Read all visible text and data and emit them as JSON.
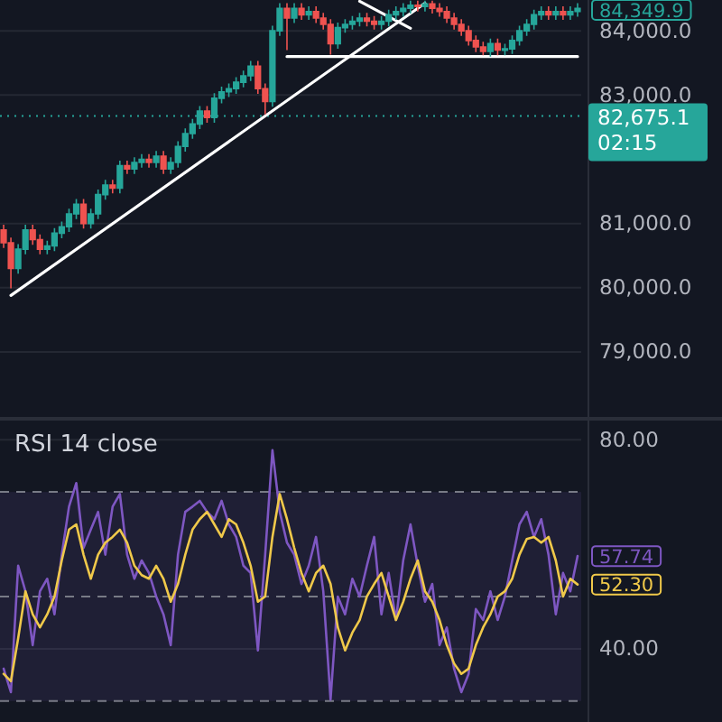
{
  "chart_data": [
    {
      "type": "candlestick",
      "categories": [
        null,
        null,
        null,
        null,
        null,
        null,
        null,
        null,
        null,
        null,
        null,
        null,
        null,
        null,
        null,
        null,
        null,
        null,
        null,
        null,
        null,
        null,
        null,
        null,
        null,
        null,
        null,
        null,
        null,
        null,
        null,
        null,
        null,
        null,
        null,
        null,
        null,
        null,
        null,
        null,
        null,
        null,
        null,
        null,
        null,
        null,
        null,
        null,
        null,
        null,
        null,
        null,
        null,
        null,
        null,
        null,
        null,
        null,
        null,
        null,
        null,
        null,
        null,
        null,
        null,
        null,
        null,
        null,
        null,
        null,
        null,
        null,
        null,
        null,
        null,
        null,
        null,
        null,
        null,
        null
      ],
      "ohlc": [
        [
          80900,
          80980,
          80620,
          80700
        ],
        [
          80700,
          80780,
          79990,
          80300
        ],
        [
          80300,
          80680,
          80220,
          80600
        ],
        [
          80600,
          80980,
          80520,
          80900
        ],
        [
          80900,
          80980,
          80670,
          80750
        ],
        [
          80750,
          80830,
          80520,
          80600
        ],
        [
          80600,
          80730,
          80520,
          80650
        ],
        [
          80650,
          80930,
          80570,
          80850
        ],
        [
          80850,
          81030,
          80770,
          80950
        ],
        [
          80950,
          81230,
          80870,
          81150
        ],
        [
          81150,
          81380,
          81070,
          81300
        ],
        [
          81300,
          81380,
          80920,
          81000
        ],
        [
          81000,
          81230,
          80920,
          81150
        ],
        [
          81150,
          81530,
          81070,
          81450
        ],
        [
          81450,
          81680,
          81370,
          81600
        ],
        [
          81600,
          81680,
          81470,
          81550
        ],
        [
          81550,
          81980,
          81470,
          81900
        ],
        [
          81900,
          81980,
          81770,
          81850
        ],
        [
          81850,
          82030,
          81770,
          81950
        ],
        [
          81950,
          82080,
          81870,
          82000
        ],
        [
          82000,
          82080,
          81870,
          81950
        ],
        [
          81950,
          82130,
          81870,
          82050
        ],
        [
          82050,
          82130,
          81770,
          81850
        ],
        [
          81850,
          82030,
          81770,
          81950
        ],
        [
          81950,
          82280,
          81870,
          82200
        ],
        [
          82200,
          82480,
          82120,
          82400
        ],
        [
          82400,
          82630,
          82320,
          82550
        ],
        [
          82550,
          82830,
          82470,
          82750
        ],
        [
          82750,
          82830,
          82570,
          82650
        ],
        [
          82650,
          83030,
          82570,
          82950
        ],
        [
          82950,
          83130,
          82870,
          83050
        ],
        [
          83050,
          83180,
          82970,
          83100
        ],
        [
          83100,
          83280,
          83020,
          83200
        ],
        [
          83200,
          83380,
          83120,
          83300
        ],
        [
          83300,
          83530,
          83220,
          83450
        ],
        [
          83450,
          83530,
          83020,
          83100
        ],
        [
          83100,
          83180,
          82700,
          82900
        ],
        [
          82900,
          84080,
          82820,
          84000
        ],
        [
          84000,
          84430,
          83920,
          84350
        ],
        [
          84350,
          84430,
          83700,
          84200
        ],
        [
          84200,
          84430,
          84120,
          84350
        ],
        [
          84350,
          84430,
          84170,
          84250
        ],
        [
          84250,
          84380,
          84170,
          84300
        ],
        [
          84300,
          84380,
          84120,
          84200
        ],
        [
          84200,
          84280,
          84020,
          84100
        ],
        [
          84100,
          84180,
          83630,
          83800
        ],
        [
          83800,
          84130,
          83720,
          84050
        ],
        [
          84050,
          84180,
          83970,
          84100
        ],
        [
          84100,
          84230,
          84020,
          84150
        ],
        [
          84150,
          84280,
          84070,
          84200
        ],
        [
          84200,
          84280,
          84070,
          84150
        ],
        [
          84150,
          84230,
          84020,
          84100
        ],
        [
          84100,
          84230,
          84020,
          84150
        ],
        [
          84150,
          84330,
          84070,
          84250
        ],
        [
          84250,
          84380,
          84170,
          84300
        ],
        [
          84300,
          84430,
          84220,
          84350
        ],
        [
          84350,
          84470,
          84270,
          84400
        ],
        [
          84400,
          84470,
          84300,
          84380
        ],
        [
          84380,
          84470,
          84300,
          84420
        ],
        [
          84420,
          84470,
          84270,
          84350
        ],
        [
          84350,
          84430,
          84220,
          84300
        ],
        [
          84300,
          84380,
          84120,
          84200
        ],
        [
          84200,
          84280,
          84020,
          84100
        ],
        [
          84100,
          84180,
          83920,
          84000
        ],
        [
          84000,
          84080,
          83770,
          83850
        ],
        [
          83850,
          83930,
          83670,
          83750
        ],
        [
          83750,
          83830,
          83620,
          83680
        ],
        [
          83680,
          83880,
          83600,
          83800
        ],
        [
          83800,
          83880,
          83620,
          83700
        ],
        [
          83700,
          83800,
          83620,
          83720
        ],
        [
          83720,
          83930,
          83640,
          83850
        ],
        [
          83850,
          84080,
          83770,
          84000
        ],
        [
          84000,
          84180,
          83920,
          84100
        ],
        [
          84100,
          84330,
          84020,
          84250
        ],
        [
          84250,
          84380,
          84170,
          84300
        ],
        [
          84300,
          84380,
          84170,
          84250
        ],
        [
          84250,
          84380,
          84170,
          84300
        ],
        [
          84300,
          84380,
          84170,
          84250
        ],
        [
          84250,
          84380,
          84170,
          84300
        ],
        [
          84300,
          84430,
          84220,
          84349.9
        ]
      ],
      "series": [
        {
          "type": "line",
          "color": "#ffffff",
          "values": [
            null,
            79880,
            null,
            null,
            null,
            null,
            null,
            null,
            null,
            null,
            null,
            null,
            null,
            null,
            null,
            null,
            null,
            null,
            null,
            null,
            null,
            null,
            null,
            null,
            null,
            null,
            null,
            null,
            null,
            null,
            null,
            null,
            null,
            null,
            null,
            null,
            null,
            null,
            null,
            null,
            null,
            null,
            null,
            null,
            null,
            null,
            null,
            null,
            null,
            null,
            null,
            null,
            null,
            null,
            null,
            null,
            null,
            null,
            84430,
            null,
            null,
            null,
            null,
            null,
            null,
            null,
            null,
            null,
            null,
            null,
            null,
            null,
            null,
            null,
            null,
            null,
            null,
            null,
            null,
            null
          ]
        },
        {
          "type": "line",
          "color": "#ffffff",
          "values": [
            null,
            null,
            null,
            null,
            null,
            null,
            null,
            null,
            null,
            null,
            null,
            null,
            null,
            null,
            null,
            null,
            null,
            null,
            null,
            null,
            null,
            null,
            null,
            null,
            null,
            null,
            null,
            null,
            null,
            null,
            null,
            null,
            null,
            null,
            null,
            null,
            null,
            null,
            null,
            83600,
            null,
            null,
            null,
            null,
            null,
            null,
            null,
            null,
            null,
            null,
            null,
            null,
            null,
            null,
            null,
            null,
            null,
            null,
            null,
            null,
            null,
            null,
            null,
            null,
            null,
            null,
            null,
            null,
            null,
            null,
            null,
            null,
            null,
            null,
            null,
            null,
            null,
            null,
            null,
            83600
          ]
        },
        {
          "type": "line",
          "color": "#ffffff",
          "values": [
            null,
            null,
            null,
            null,
            null,
            null,
            null,
            null,
            null,
            null,
            null,
            null,
            null,
            null,
            null,
            null,
            null,
            null,
            null,
            null,
            null,
            null,
            null,
            null,
            null,
            null,
            null,
            null,
            null,
            null,
            null,
            null,
            null,
            null,
            null,
            null,
            null,
            null,
            null,
            null,
            null,
            null,
            null,
            null,
            null,
            null,
            null,
            null,
            null,
            84460,
            null,
            null,
            null,
            null,
            null,
            null,
            84040,
            null,
            null,
            null,
            null,
            null,
            null,
            null,
            null,
            null,
            null,
            null,
            null,
            null,
            null,
            null,
            null,
            null,
            null,
            null,
            null,
            null,
            null,
            null
          ]
        }
      ],
      "ylim": [
        77960,
        84480
      ],
      "yticks": [
        {
          "value": 79000,
          "label": "79,000.0"
        },
        {
          "value": 80000,
          "label": "80,000.0"
        },
        {
          "value": 81000,
          "label": "81,000.0"
        },
        {
          "value": 83000,
          "label": "83,000.0"
        },
        {
          "value": 84000,
          "label": "84,000.0"
        }
      ],
      "ref_lines": [
        {
          "axis": "y",
          "value": 82675.1,
          "label": "82,675.1",
          "color": "#26a69a",
          "line_style": "dotted"
        }
      ],
      "annotations": [
        "84,349.9",
        "02:15"
      ],
      "grid": "y",
      "tick_labels": "y"
    },
    {
      "type": "line",
      "title": "RSI 14 close",
      "categories": [
        null,
        null,
        null,
        null,
        null,
        null,
        null,
        null,
        null,
        null,
        null,
        null,
        null,
        null,
        null,
        null,
        null,
        null,
        null,
        null,
        null,
        null,
        null,
        null,
        null,
        null,
        null,
        null,
        null,
        null,
        null,
        null,
        null,
        null,
        null,
        null,
        null,
        null,
        null,
        null,
        null,
        null,
        null,
        null,
        null,
        null,
        null,
        null,
        null,
        null,
        null,
        null,
        null,
        null,
        null,
        null,
        null,
        null,
        null,
        null,
        null,
        null,
        null,
        null,
        null,
        null,
        null,
        null,
        null,
        null,
        null,
        null,
        null,
        null,
        null,
        null,
        null,
        null,
        null,
        null
      ],
      "series": [
        {
          "color": "#7e57c2",
          "values": [
            36.2,
            31.7,
            55.9,
            51,
            40.7,
            51,
            53.4,
            46.6,
            58,
            67.2,
            71.7,
            59.3,
            62.8,
            66.2,
            58,
            67.2,
            69.6,
            58,
            53.4,
            56.9,
            54.5,
            50,
            46.6,
            40.7,
            58,
            66.2,
            67.2,
            68.3,
            66.2,
            64.8,
            68.3,
            63.8,
            61.4,
            55.9,
            54.5,
            39.7,
            58,
            78,
            66.2,
            60.3,
            58,
            52.4,
            55.9,
            61.4,
            51,
            30.3,
            50,
            46.6,
            53.4,
            50,
            55.9,
            61.4,
            46.6,
            54.5,
            45.5,
            56.9,
            63.8,
            55.9,
            49,
            52.4,
            40.7,
            44.1,
            36.2,
            31.7,
            35.2,
            47.6,
            45.5,
            51,
            45.5,
            50,
            56.9,
            63.8,
            66.2,
            61.4,
            64.8,
            58,
            46.6,
            54.5,
            51,
            57.74
          ]
        },
        {
          "color": "#f0c94a",
          "values": [
            35.2,
            33.8,
            42,
            51,
            46.6,
            44.1,
            46.6,
            50,
            56.9,
            62.8,
            63.8,
            58,
            53.4,
            58,
            60.3,
            61.4,
            62.8,
            60.3,
            55.9,
            54.1,
            53.4,
            55.9,
            53.4,
            49,
            52.4,
            58,
            62.8,
            64.8,
            66.2,
            63.8,
            61.4,
            64.8,
            63.8,
            60.3,
            55.9,
            49,
            50,
            61.4,
            69.6,
            64.8,
            59.3,
            54.5,
            51,
            54.5,
            55.9,
            52.4,
            44.1,
            39.7,
            43.1,
            45.5,
            50,
            52.4,
            54.5,
            50,
            45.5,
            49,
            53.4,
            56.9,
            51,
            49,
            45.5,
            40.7,
            37.2,
            35.2,
            36.2,
            40.7,
            44.1,
            46.6,
            50,
            51,
            53.4,
            58,
            61,
            61.4,
            60.3,
            61.4,
            56.9,
            50,
            53.4,
            52.3
          ]
        }
      ],
      "ylim": [
        26,
        84
      ],
      "yticks": [
        {
          "value": 40,
          "label": "40.00"
        },
        {
          "value": 80,
          "label": "80.00"
        }
      ],
      "ref_lines": [
        {
          "axis": "y",
          "value": 70,
          "color": "#787b86",
          "line_style": "dashed"
        },
        {
          "axis": "y",
          "value": 50,
          "color": "#787b86",
          "line_style": "dashed"
        },
        {
          "axis": "y",
          "value": 30,
          "color": "#787b86",
          "line_style": "dashed"
        }
      ],
      "bands": [
        {
          "axis": "y",
          "from": 30,
          "to": 70,
          "color": "#7e57c2"
        }
      ],
      "annotations": [
        "57.74",
        "52.30"
      ],
      "grid": "y",
      "tick_labels": "y"
    }
  ]
}
